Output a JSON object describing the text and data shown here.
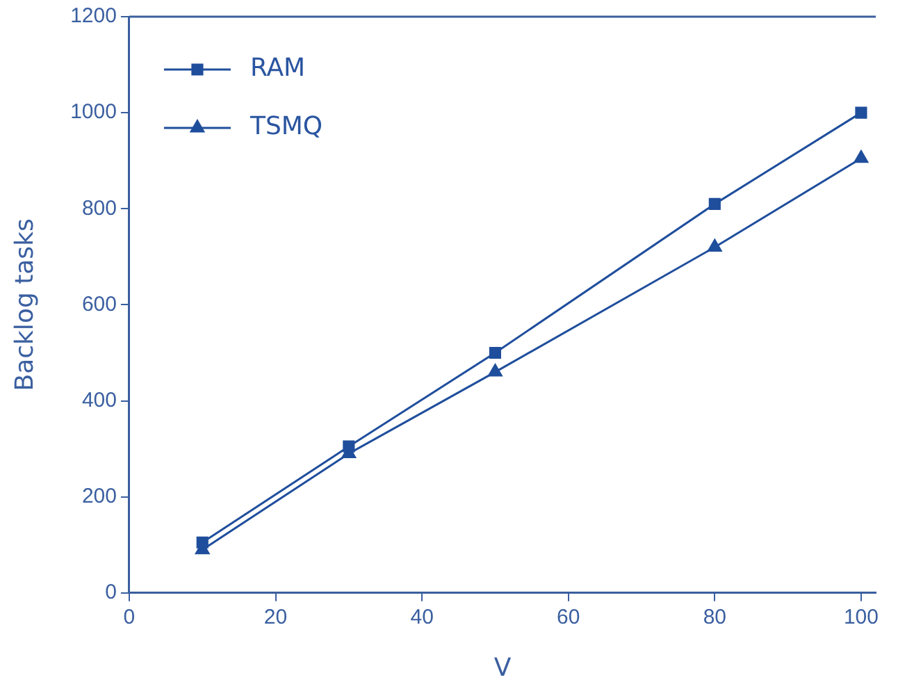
{
  "chart_data": {
    "type": "line",
    "xlabel": "V",
    "ylabel": "Backlog tasks",
    "x": [
      10,
      30,
      50,
      80,
      100
    ],
    "series": [
      {
        "name": "RAM",
        "color": "#1f4e9c",
        "marker": "square",
        "values": [
          105,
          305,
          500,
          810,
          1000
        ]
      },
      {
        "name": "TSMQ",
        "color": "#1f4e9c",
        "marker": "triangle",
        "values": [
          90,
          290,
          460,
          720,
          905
        ]
      }
    ],
    "xlim": [
      0,
      102
    ],
    "xticks": [
      0,
      20,
      40,
      60,
      80,
      100
    ],
    "ylim": [
      0,
      1200
    ],
    "yticks": [
      0,
      200,
      400,
      600,
      800,
      1000,
      1200
    ],
    "grid": false,
    "legend": "top left",
    "line_style": "solid"
  }
}
